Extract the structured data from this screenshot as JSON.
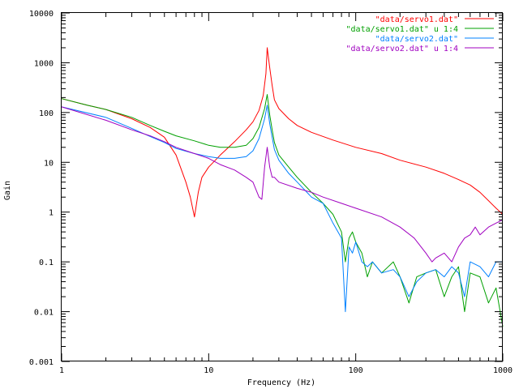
{
  "chart_data": {
    "type": "line",
    "title": "",
    "xlabel": "Frequency (Hz)",
    "ylabel": "Gain",
    "xscale": "log",
    "yscale": "log",
    "xlim": [
      1,
      1000
    ],
    "ylim": [
      0.001,
      10000
    ],
    "x_ticks": [
      {
        "value": 1,
        "label": "1"
      },
      {
        "value": 10,
        "label": "10"
      },
      {
        "value": 100,
        "label": "100"
      },
      {
        "value": 1000,
        "label": "1000"
      }
    ],
    "y_ticks": [
      {
        "value": 0.001,
        "label": "0.001"
      },
      {
        "value": 0.01,
        "label": "0.01"
      },
      {
        "value": 0.1,
        "label": "0.1"
      },
      {
        "value": 1,
        "label": "1"
      },
      {
        "value": 10,
        "label": "10"
      },
      {
        "value": 100,
        "label": "100"
      },
      {
        "value": 1000,
        "label": "1000"
      },
      {
        "value": 10000,
        "label": "10000"
      }
    ],
    "grid": false,
    "legend_position": "top-right",
    "series": [
      {
        "name": "\"data/servo1.dat\"",
        "color": "#ff0000",
        "points": [
          [
            1,
            190
          ],
          [
            1.5,
            140
          ],
          [
            2,
            115
          ],
          [
            3,
            75
          ],
          [
            4,
            50
          ],
          [
            5,
            32
          ],
          [
            6,
            14
          ],
          [
            7,
            4
          ],
          [
            7.5,
            2
          ],
          [
            8,
            0.8
          ],
          [
            8.5,
            2.5
          ],
          [
            9,
            5
          ],
          [
            10,
            8
          ],
          [
            12,
            14
          ],
          [
            15,
            26
          ],
          [
            18,
            45
          ],
          [
            20,
            65
          ],
          [
            22,
            110
          ],
          [
            23.5,
            220
          ],
          [
            24.5,
            600
          ],
          [
            25,
            2000
          ],
          [
            26,
            800
          ],
          [
            27,
            350
          ],
          [
            28,
            180
          ],
          [
            30,
            120
          ],
          [
            35,
            75
          ],
          [
            40,
            55
          ],
          [
            50,
            40
          ],
          [
            70,
            28
          ],
          [
            100,
            20
          ],
          [
            150,
            15
          ],
          [
            200,
            11
          ],
          [
            300,
            8
          ],
          [
            400,
            6
          ],
          [
            500,
            4.5
          ],
          [
            600,
            3.5
          ],
          [
            700,
            2.5
          ],
          [
            800,
            1.7
          ],
          [
            900,
            1.2
          ],
          [
            1000,
            0.9
          ]
        ]
      },
      {
        "name": "\"data/servo1.dat\" u 1:4",
        "color": "#00a000",
        "points": [
          [
            1,
            190
          ],
          [
            1.5,
            140
          ],
          [
            2,
            115
          ],
          [
            3,
            80
          ],
          [
            4,
            55
          ],
          [
            5,
            42
          ],
          [
            6,
            34
          ],
          [
            8,
            27
          ],
          [
            10,
            22
          ],
          [
            12,
            20
          ],
          [
            15,
            20
          ],
          [
            18,
            22
          ],
          [
            20,
            30
          ],
          [
            22,
            50
          ],
          [
            24,
            120
          ],
          [
            25,
            230
          ],
          [
            26,
            90
          ],
          [
            27,
            45
          ],
          [
            28,
            25
          ],
          [
            30,
            14
          ],
          [
            35,
            8
          ],
          [
            40,
            5
          ],
          [
            50,
            2.5
          ],
          [
            60,
            1.5
          ],
          [
            70,
            0.9
          ],
          [
            80,
            0.4
          ],
          [
            85,
            0.1
          ],
          [
            90,
            0.3
          ],
          [
            95,
            0.4
          ],
          [
            100,
            0.25
          ],
          [
            110,
            0.15
          ],
          [
            120,
            0.05
          ],
          [
            130,
            0.1
          ],
          [
            150,
            0.06
          ],
          [
            180,
            0.1
          ],
          [
            200,
            0.05
          ],
          [
            230,
            0.015
          ],
          [
            260,
            0.05
          ],
          [
            300,
            0.06
          ],
          [
            350,
            0.07
          ],
          [
            400,
            0.02
          ],
          [
            450,
            0.05
          ],
          [
            500,
            0.08
          ],
          [
            550,
            0.01
          ],
          [
            600,
            0.06
          ],
          [
            700,
            0.05
          ],
          [
            800,
            0.015
          ],
          [
            900,
            0.03
          ],
          [
            1000,
            0.005
          ]
        ]
      },
      {
        "name": "\"data/servo2.dat\"",
        "color": "#0080ff",
        "points": [
          [
            1,
            130
          ],
          [
            2,
            80
          ],
          [
            3,
            48
          ],
          [
            4,
            33
          ],
          [
            5,
            25
          ],
          [
            6,
            19
          ],
          [
            8,
            15
          ],
          [
            10,
            13
          ],
          [
            12,
            12
          ],
          [
            15,
            12
          ],
          [
            18,
            13
          ],
          [
            20,
            17
          ],
          [
            22,
            30
          ],
          [
            24,
            75
          ],
          [
            25,
            140
          ],
          [
            26,
            60
          ],
          [
            27,
            32
          ],
          [
            28,
            18
          ],
          [
            30,
            11
          ],
          [
            35,
            6
          ],
          [
            40,
            4
          ],
          [
            50,
            2
          ],
          [
            60,
            1.5
          ],
          [
            70,
            0.6
          ],
          [
            80,
            0.3
          ],
          [
            85,
            0.01
          ],
          [
            90,
            0.2
          ],
          [
            95,
            0.15
          ],
          [
            100,
            0.25
          ],
          [
            110,
            0.1
          ],
          [
            120,
            0.08
          ],
          [
            130,
            0.1
          ],
          [
            150,
            0.06
          ],
          [
            180,
            0.07
          ],
          [
            200,
            0.05
          ],
          [
            230,
            0.02
          ],
          [
            260,
            0.04
          ],
          [
            300,
            0.06
          ],
          [
            350,
            0.07
          ],
          [
            400,
            0.05
          ],
          [
            450,
            0.08
          ],
          [
            500,
            0.06
          ],
          [
            550,
            0.02
          ],
          [
            600,
            0.1
          ],
          [
            700,
            0.08
          ],
          [
            800,
            0.05
          ],
          [
            900,
            0.1
          ],
          [
            1000,
            0.1
          ]
        ]
      },
      {
        "name": "\"data/servo2.dat\" u 1:4",
        "color": "#a000c0",
        "points": [
          [
            1,
            130
          ],
          [
            2,
            70
          ],
          [
            3,
            45
          ],
          [
            4,
            34
          ],
          [
            5,
            26
          ],
          [
            6,
            20
          ],
          [
            8,
            15
          ],
          [
            10,
            12
          ],
          [
            12,
            9
          ],
          [
            15,
            7
          ],
          [
            18,
            5
          ],
          [
            20,
            4
          ],
          [
            22,
            2
          ],
          [
            23,
            1.8
          ],
          [
            24,
            8
          ],
          [
            25,
            20
          ],
          [
            26,
            8
          ],
          [
            27,
            5
          ],
          [
            28,
            5
          ],
          [
            30,
            4
          ],
          [
            40,
            3
          ],
          [
            50,
            2.5
          ],
          [
            60,
            2
          ],
          [
            80,
            1.5
          ],
          [
            100,
            1.2
          ],
          [
            150,
            0.8
          ],
          [
            200,
            0.5
          ],
          [
            250,
            0.3
          ],
          [
            300,
            0.15
          ],
          [
            330,
            0.1
          ],
          [
            350,
            0.12
          ],
          [
            400,
            0.15
          ],
          [
            450,
            0.1
          ],
          [
            500,
            0.2
          ],
          [
            550,
            0.3
          ],
          [
            600,
            0.35
          ],
          [
            650,
            0.5
          ],
          [
            700,
            0.35
          ],
          [
            800,
            0.5
          ],
          [
            900,
            0.6
          ],
          [
            1000,
            0.7
          ]
        ]
      }
    ]
  }
}
